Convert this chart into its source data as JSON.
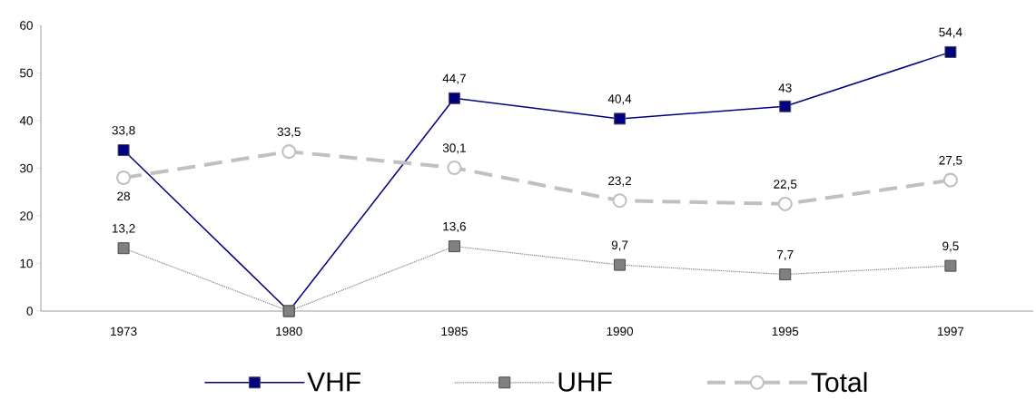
{
  "chart_data": {
    "type": "line",
    "categories": [
      "1973",
      "1980",
      "1985",
      "1990",
      "1995",
      "1997"
    ],
    "series": [
      {
        "name": "VHF",
        "color": "#000080",
        "values": [
          33.8,
          0,
          44.7,
          40.4,
          43,
          54.4
        ],
        "value_labels": [
          "33,8",
          null,
          "44,7",
          "40,4",
          "43",
          "54,4"
        ],
        "marker": "square",
        "line_style": "solid"
      },
      {
        "name": "UHF",
        "color": "#808080",
        "values": [
          13.2,
          0,
          13.6,
          9.7,
          7.7,
          9.5
        ],
        "value_labels": [
          "13,2",
          null,
          "13,6",
          "9,7",
          "7,7",
          "9,5"
        ],
        "marker": "square",
        "line_style": "dotted"
      },
      {
        "name": "Total",
        "color": "#c0c0c0",
        "values": [
          28,
          33.5,
          30.1,
          23.2,
          22.5,
          27.5
        ],
        "value_labels": [
          "28",
          "33,5",
          "30,1",
          "23,2",
          "22,5",
          "27,5"
        ],
        "marker": "circle",
        "line_style": "dashed"
      }
    ],
    "ylim": [
      0,
      60
    ],
    "yticks": [
      0,
      10,
      20,
      30,
      40,
      50,
      60
    ],
    "grid": false,
    "legend": "bottom"
  }
}
